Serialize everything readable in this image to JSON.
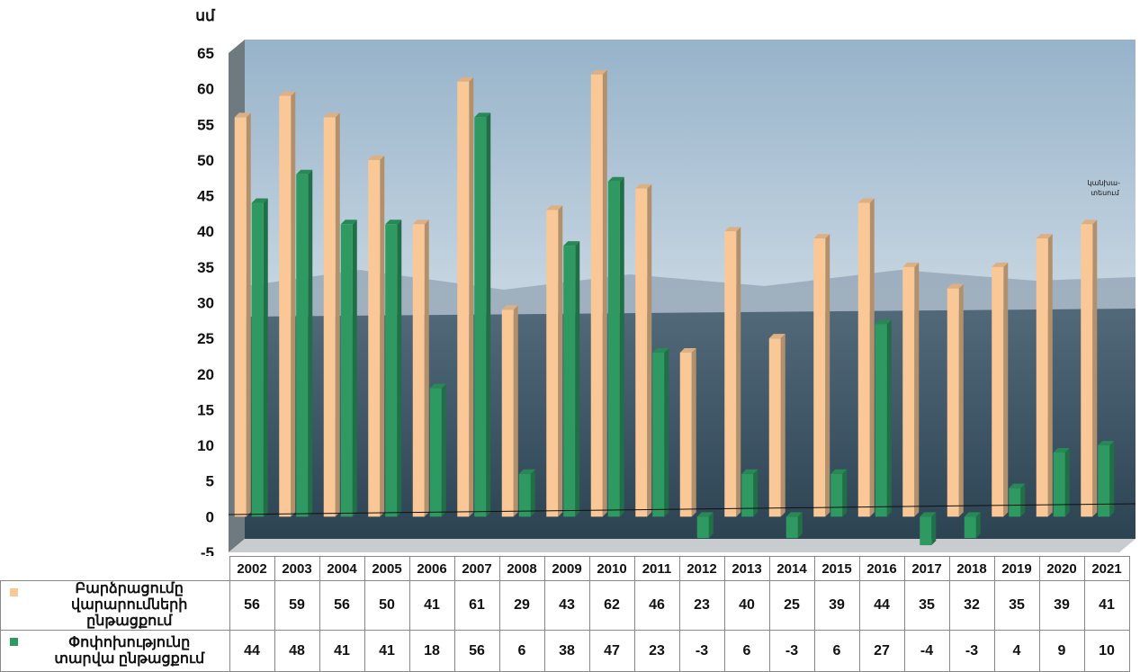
{
  "chart_data": {
    "type": "bar",
    "ylabel": "սմ",
    "ylim": [
      -5,
      65
    ],
    "yticks": [
      -5,
      0,
      5,
      10,
      15,
      20,
      25,
      30,
      35,
      40,
      45,
      50,
      55,
      60,
      65
    ],
    "categories": [
      "2002",
      "2003",
      "2004",
      "2005",
      "2006",
      "2007",
      "2008",
      "2009",
      "2010",
      "2011",
      "2012",
      "2013",
      "2014",
      "2015",
      "2016",
      "2017",
      "2018",
      "2019",
      "2020",
      "2021"
    ],
    "series": [
      {
        "name": "Բարձրացումը վարարումների ընթացքում",
        "color": "#F9C896",
        "values": [
          56,
          59,
          56,
          50,
          41,
          61,
          29,
          43,
          62,
          46,
          23,
          40,
          25,
          39,
          44,
          35,
          32,
          35,
          39,
          41
        ]
      },
      {
        "name": "Փոփոխությունը տարվա ընթացքում",
        "color": "#2E9A62",
        "values": [
          44,
          48,
          41,
          41,
          18,
          56,
          6,
          38,
          47,
          23,
          -3,
          6,
          -3,
          6,
          27,
          -4,
          -3,
          4,
          9,
          10
        ]
      }
    ],
    "annotation": "կանխա- տեսում",
    "grid": false,
    "legend": "table-bottom-left"
  },
  "table": {
    "row1_label_line1": "Բարձրացումը",
    "row1_label_line2": "վարարումների ընթացքում",
    "row2_label_line1": "Փոփոխությունը",
    "row2_label_line2": "տարվա ընթացքում"
  },
  "colors": {
    "sky_top": "#9FB8CC",
    "sky_mid": "#C9D7E2",
    "sea_top": "#4F6878",
    "sea_bottom": "#2B4150",
    "floor": "#C8CCCE"
  }
}
